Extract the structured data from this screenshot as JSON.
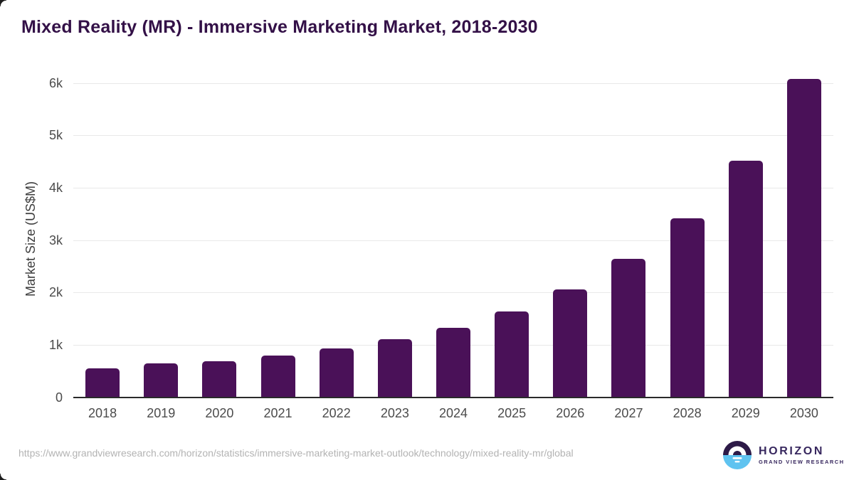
{
  "page": {
    "source_url": "https://www.grandviewresearch.com/horizon/statistics/immersive-marketing-market-outlook/technology/mixed-reality-mr/global"
  },
  "branding": {
    "logo_name": "HORIZON",
    "logo_subtitle": "GRAND VIEW RESEARCH"
  },
  "colors": {
    "title": "#331047",
    "bar": "#4a1158",
    "axis_label": "#4b4b4b",
    "gridline": "#e9e9e9",
    "axis_line": "#2a2a2a",
    "source_url": "#b3b3b3",
    "logo_purple": "#2d1a47",
    "logo_blue": "#5fc3f0",
    "logo_text": "#37275e"
  },
  "chart_data": {
    "type": "bar",
    "title": "Mixed Reality (MR) - Immersive Marketing Market, 2018-2030",
    "categories": [
      "2018",
      "2019",
      "2020",
      "2021",
      "2022",
      "2023",
      "2024",
      "2025",
      "2026",
      "2027",
      "2028",
      "2029",
      "2030"
    ],
    "values": [
      545,
      650,
      690,
      800,
      930,
      1100,
      1330,
      1640,
      2060,
      2640,
      3420,
      4510,
      6080
    ],
    "xlabel": "",
    "ylabel": "Market Size (US$M)",
    "ytick_labels": [
      "0",
      "1k",
      "2k",
      "3k",
      "4k",
      "5k",
      "6k"
    ],
    "ytick_values": [
      0,
      1000,
      2000,
      3000,
      4000,
      5000,
      6000
    ],
    "ylim": [
      0,
      6200
    ],
    "grid": true,
    "legend": false,
    "bar_color": "#4a1158"
  }
}
